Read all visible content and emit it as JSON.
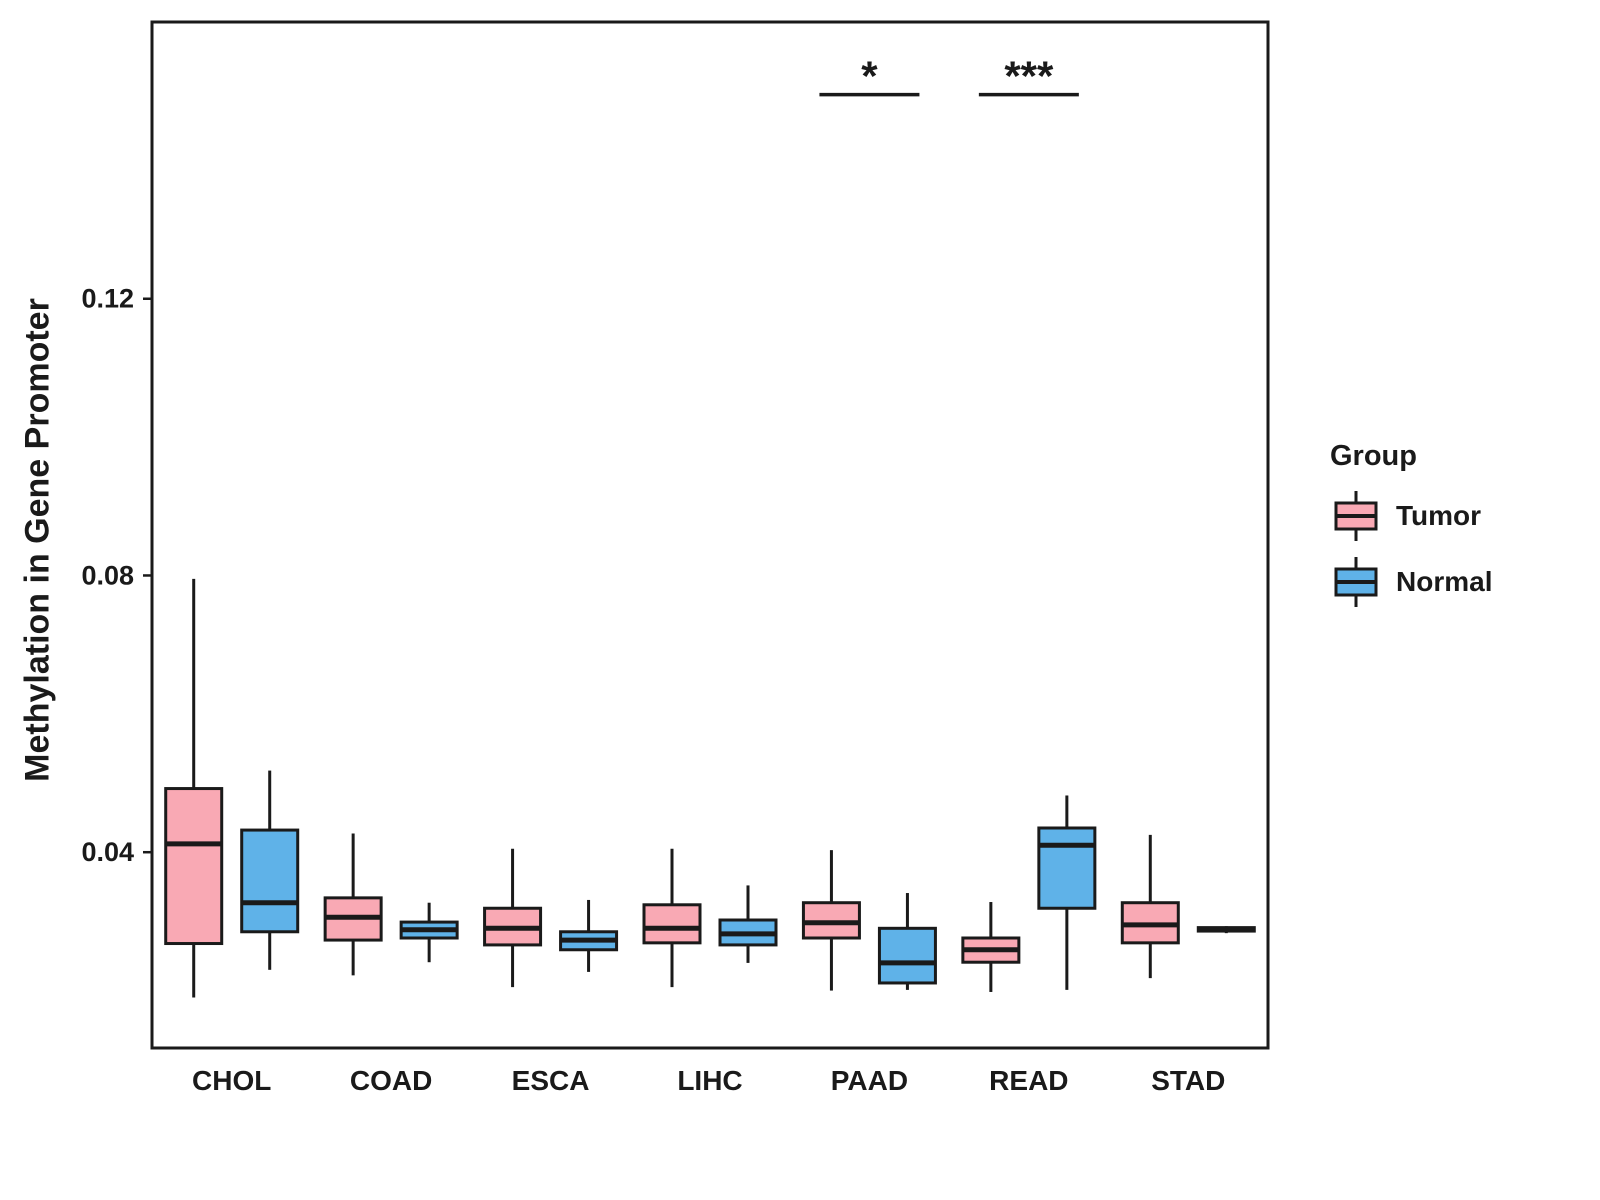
{
  "chart_data": {
    "type": "boxplot",
    "title": "",
    "xlabel": "",
    "ylabel": "Methylation in Gene Promoter",
    "categories": [
      "CHOL",
      "COAD",
      "ESCA",
      "LIHC",
      "PAAD",
      "READ",
      "STAD"
    ],
    "yticks": [
      {
        "value": 0.04,
        "label": "0.04"
      },
      {
        "value": 0.08,
        "label": "0.08"
      },
      {
        "value": 0.12,
        "label": "0.12"
      }
    ],
    "ylim": [
      0.0117,
      0.16
    ],
    "grid": false,
    "legend": {
      "title": "Group",
      "position": "right",
      "entries": [
        {
          "label": "Tumor",
          "color": "#F9A9B4"
        },
        {
          "label": "Normal",
          "color": "#5FB2E8"
        }
      ]
    },
    "series": [
      {
        "name": "Tumor",
        "color": "#F9A9B4",
        "boxes": [
          {
            "low": 0.019,
            "q1": 0.0268,
            "median": 0.0412,
            "q3": 0.0492,
            "high": 0.0795
          },
          {
            "low": 0.0222,
            "q1": 0.0273,
            "median": 0.0306,
            "q3": 0.0334,
            "high": 0.0427
          },
          {
            "low": 0.0205,
            "q1": 0.0266,
            "median": 0.029,
            "q3": 0.0319,
            "high": 0.0405
          },
          {
            "low": 0.0205,
            "q1": 0.0269,
            "median": 0.029,
            "q3": 0.0324,
            "high": 0.0405
          },
          {
            "low": 0.02,
            "q1": 0.0276,
            "median": 0.0298,
            "q3": 0.0327,
            "high": 0.0403
          },
          {
            "low": 0.0198,
            "q1": 0.0241,
            "median": 0.0259,
            "q3": 0.0276,
            "high": 0.0328
          },
          {
            "low": 0.0218,
            "q1": 0.0269,
            "median": 0.0295,
            "q3": 0.0327,
            "high": 0.0425
          }
        ]
      },
      {
        "name": "Normal",
        "color": "#5FB2E8",
        "boxes": [
          {
            "low": 0.023,
            "q1": 0.0285,
            "median": 0.0327,
            "q3": 0.0432,
            "high": 0.0518
          },
          {
            "low": 0.0241,
            "q1": 0.0276,
            "median": 0.0288,
            "q3": 0.0299,
            "high": 0.0327
          },
          {
            "low": 0.0227,
            "q1": 0.0259,
            "median": 0.0273,
            "q3": 0.0285,
            "high": 0.0331
          },
          {
            "low": 0.024,
            "q1": 0.0266,
            "median": 0.0282,
            "q3": 0.0302,
            "high": 0.0352
          },
          {
            "low": 0.0201,
            "q1": 0.0211,
            "median": 0.024,
            "q3": 0.029,
            "high": 0.0341
          },
          {
            "low": 0.0201,
            "q1": 0.0319,
            "median": 0.041,
            "q3": 0.0435,
            "high": 0.0482
          },
          {
            "low": 0.0283,
            "q1": 0.0286,
            "median": 0.0288,
            "q3": 0.0291,
            "high": 0.0293
          }
        ]
      }
    ],
    "annotations": [
      {
        "label": "*",
        "category": "PAAD",
        "y": 0.1495
      },
      {
        "label": "***",
        "category": "READ",
        "y": 0.1495
      }
    ]
  }
}
